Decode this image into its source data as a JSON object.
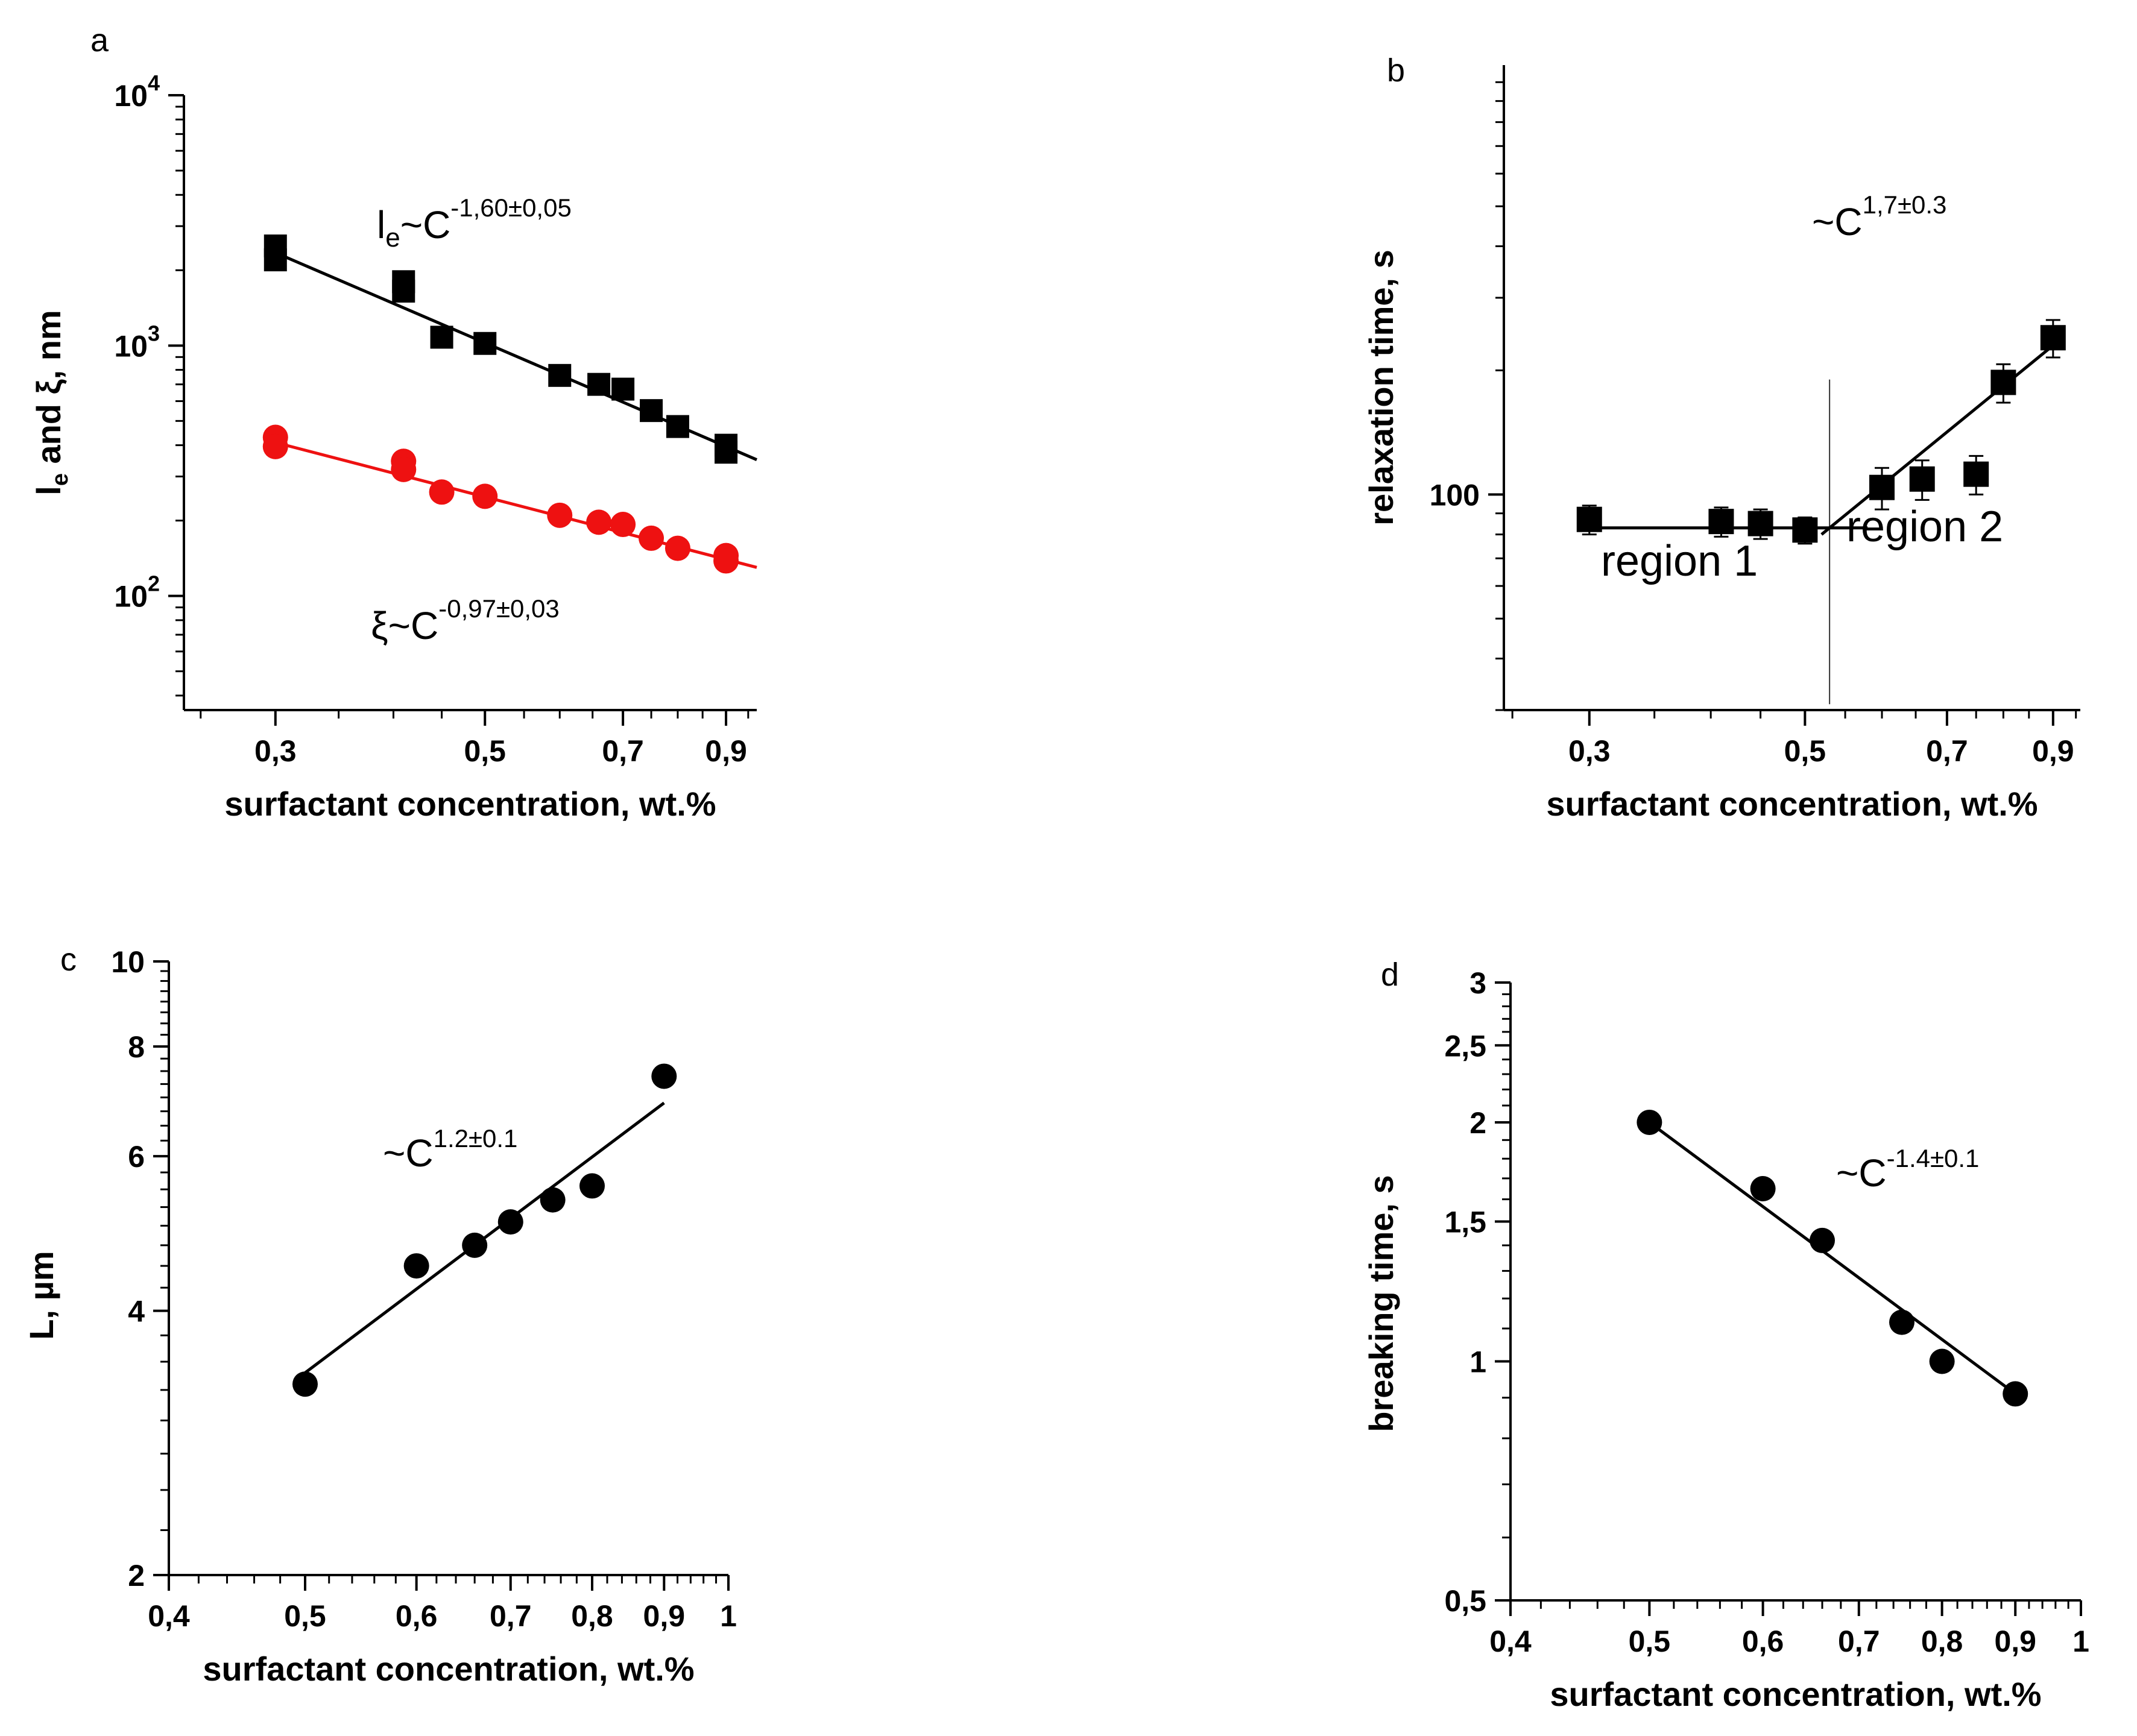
{
  "chart_data": [
    {
      "panel": "a",
      "type": "scatter",
      "xscale": "log",
      "yscale": "log",
      "xlim": [
        0.24,
        0.97
      ],
      "ylim": [
        35,
        10000
      ],
      "xticks": [
        0.3,
        0.5,
        0.7,
        0.9
      ],
      "xtick_labels": [
        "0,3",
        "0,5",
        "0,7",
        "0,9"
      ],
      "yticks": [
        100,
        1000,
        10000
      ],
      "ytick_labels": [
        {
          "base": "10",
          "exp": "2"
        },
        {
          "base": "10",
          "exp": "3"
        },
        {
          "base": "10",
          "exp": "4"
        }
      ],
      "xlabel": "surfactant concentration, wt.%",
      "ylabel": {
        "l": "l",
        "sub": "e",
        "rest": " and ξ, nm"
      },
      "series": [
        {
          "name": "le",
          "marker": "square",
          "color": "#000000",
          "x": [
            0.3,
            0.3,
            0.41,
            0.41,
            0.45,
            0.5,
            0.6,
            0.66,
            0.7,
            0.75,
            0.8,
            0.9,
            0.9
          ],
          "y": [
            2500,
            2200,
            1800,
            1650,
            1080,
            1020,
            760,
            700,
            670,
            550,
            475,
            400,
            375
          ],
          "fit": {
            "x": [
              0.3,
              0.97
            ],
            "y": [
              2350,
              350
            ],
            "color": "#000000"
          }
        },
        {
          "name": "xi",
          "marker": "circle",
          "color": "#ee1111",
          "x": [
            0.3,
            0.3,
            0.41,
            0.41,
            0.45,
            0.5,
            0.6,
            0.66,
            0.7,
            0.75,
            0.8,
            0.9,
            0.9
          ],
          "y": [
            430,
            395,
            345,
            320,
            260,
            250,
            210,
            197,
            193,
            170,
            155,
            145,
            138
          ],
          "fit": {
            "x": [
              0.3,
              0.97
            ],
            "y": [
              410,
              130
            ],
            "color": "#ee1111"
          }
        }
      ],
      "annotations": [
        {
          "id": "le_law",
          "pre": "l",
          "sub": "e",
          "mid": "~C",
          "sup": "-1,60±0,05"
        },
        {
          "id": "xi_law",
          "pre": "ξ",
          "sub": "",
          "mid": "~C",
          "sup": "-0,97±0,03"
        }
      ]
    },
    {
      "panel": "b",
      "type": "scatter",
      "xscale": "log",
      "yscale": "log",
      "xlim": [
        0.245,
        0.96
      ],
      "ylim": [
        30,
        1100
      ],
      "xticks": [
        0.3,
        0.5,
        0.7,
        0.9
      ],
      "xtick_labels": [
        "0,3",
        "0,5",
        "0,7",
        "0,9"
      ],
      "yticks": [
        100
      ],
      "ytick_labels": [
        "100"
      ],
      "xlabel": "surfactant concentration, wt.%",
      "ylabel": "relaxation time, s",
      "series": [
        {
          "name": "relaxation",
          "marker": "square",
          "color": "#000000",
          "x": [
            0.3,
            0.41,
            0.45,
            0.5,
            0.6,
            0.66,
            0.75,
            0.8,
            0.9
          ],
          "y": [
            87,
            86,
            85,
            82,
            104,
            109,
            112,
            187,
            240
          ],
          "err": [
            7,
            7,
            7,
            6,
            12,
            12,
            12,
            20,
            25
          ],
          "fit": [
            {
              "x": [
                0.3,
                0.58
              ],
              "y": [
                83,
                83
              ]
            },
            {
              "x": [
                0.52,
                0.89
              ],
              "y": [
                80,
                225
              ]
            }
          ]
        }
      ],
      "divider_x": 0.53,
      "divider_y": [
        31,
        190
      ],
      "region_labels": [
        "region 1",
        "region 2"
      ],
      "annotations": [
        {
          "id": "relax_law",
          "mid": "~C",
          "sup": "1,7±0.3"
        }
      ]
    },
    {
      "panel": "c",
      "type": "scatter",
      "xscale": "log",
      "yscale": "log",
      "xlim": [
        0.4,
        1.0
      ],
      "ylim": [
        2,
        10
      ],
      "xticks": [
        0.4,
        0.5,
        0.6,
        0.7,
        0.8,
        0.9,
        1.0
      ],
      "xtick_labels": [
        "0,4",
        "0,5",
        "0,6",
        "0,7",
        "0,8",
        "0,9",
        "1"
      ],
      "yticks": [
        2,
        4,
        6,
        8,
        10
      ],
      "ytick_labels": [
        "2",
        "4",
        "6",
        "8",
        "10"
      ],
      "xlabel": "surfactant concentration, wt.%",
      "ylabel": "L, µm",
      "series": [
        {
          "name": "L",
          "marker": "circle",
          "color": "#000000",
          "x": [
            0.5,
            0.6,
            0.66,
            0.7,
            0.75,
            0.8,
            0.9
          ],
          "y": [
            3.3,
            4.5,
            4.75,
            5.05,
            5.35,
            5.55,
            7.4
          ],
          "fit": {
            "x": [
              0.5,
              0.9
            ],
            "y": [
              3.4,
              6.9
            ]
          }
        }
      ],
      "annotations": [
        {
          "id": "L_law",
          "mid": "~C",
          "sup": "1.2±0.1"
        }
      ]
    },
    {
      "panel": "d",
      "type": "scatter",
      "xscale": "log",
      "yscale": "log",
      "xlim": [
        0.4,
        1.0
      ],
      "ylim": [
        0.5,
        3
      ],
      "xticks": [
        0.4,
        0.5,
        0.6,
        0.7,
        0.8,
        0.9,
        1.0
      ],
      "xtick_labels": [
        "0,4",
        "0,5",
        "0,6",
        "0,7",
        "0,8",
        "0,9",
        "1"
      ],
      "yticks": [
        0.5,
        1,
        1.5,
        2,
        2.5,
        3
      ],
      "ytick_labels": [
        "0,5",
        "1",
        "1,5",
        "2",
        "2,5",
        "3"
      ],
      "xlabel": "surfactant concentration, wt.%",
      "ylabel": "breaking time, s",
      "series": [
        {
          "name": "breaking",
          "marker": "circle",
          "color": "#000000",
          "x": [
            0.5,
            0.6,
            0.66,
            0.75,
            0.8,
            0.9
          ],
          "y": [
            2.0,
            1.65,
            1.42,
            1.12,
            1.0,
            0.91
          ],
          "fit": {
            "x": [
              0.5,
              0.9
            ],
            "y": [
              2.0,
              0.91
            ]
          }
        }
      ],
      "annotations": [
        {
          "id": "break_law",
          "mid": "~C",
          "sup": "-1.4±0.1"
        }
      ]
    }
  ]
}
